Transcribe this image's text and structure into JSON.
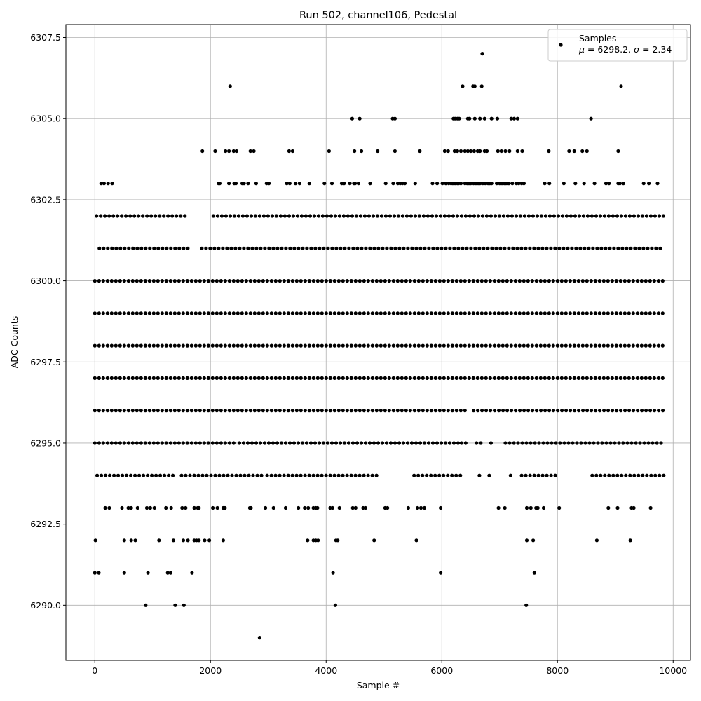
{
  "chart_data": {
    "type": "scatter",
    "title": "Run 502, channel106, Pedestal",
    "xlabel": "Sample #",
    "ylabel": "ADC Counts",
    "xlim": [
      -500,
      10300
    ],
    "ylim": [
      6288.3,
      6307.9
    ],
    "xticks": [
      0,
      2000,
      4000,
      6000,
      8000,
      10000
    ],
    "xtick_labels": [
      "0",
      "2000",
      "4000",
      "6000",
      "8000",
      "10000"
    ],
    "yticks": [
      6290.0,
      6292.5,
      6295.0,
      6297.5,
      6300.0,
      6302.5,
      6305.0,
      6307.5
    ],
    "ytick_labels": [
      "6290.0",
      "6292.5",
      "6295.0",
      "6297.5",
      "6300.0",
      "6302.5",
      "6305.0",
      "6307.5"
    ],
    "grid": true,
    "legend_position": "top-right",
    "series": [
      {
        "name": "Samples",
        "marker_color": "#000000",
        "n_samples": 9840,
        "levels": [
          {
            "y": 6289,
            "x": [
              2850
            ]
          },
          {
            "y": 6290,
            "x": [
              880,
              1390,
              1540,
              4160,
              7460
            ]
          },
          {
            "y": 6291,
            "x": [
              0,
              70,
              510,
              920,
              1260,
              1310,
              1680,
              4120,
              5980,
              7600
            ]
          },
          {
            "y": 6292,
            "x": [
              10,
              510,
              630,
              700,
              1110,
              1360,
              1530,
              1610,
              1720,
              1760,
              1800,
              1900,
              1980,
              2220,
              3680,
              3780,
              3820,
              3860,
              4170,
              4200,
              4830,
              5560,
              7470,
              7580,
              8680,
              9260
            ]
          },
          {
            "y": 6293,
            "x": [
              180,
              250,
              470,
              580,
              630,
              740,
              900,
              960,
              1030,
              1230,
              1320,
              1510,
              1570,
              1720,
              1780,
              1800,
              2040,
              2120,
              2220,
              2250,
              2680,
              2700,
              2950,
              3090,
              3300,
              3520,
              3630,
              3690,
              3780,
              3820,
              3850,
              4070,
              4110,
              4230,
              4460,
              4510,
              4640,
              4680,
              5020,
              5060,
              5420,
              5580,
              5640,
              5700,
              5980,
              6980,
              7090,
              7470,
              7540,
              7630,
              7660,
              7760,
              8030,
              8880,
              9040,
              9280,
              9320,
              9610
            ]
          },
          {
            "y": 6294,
            "x_ranges": [
              [
                40,
                1360
              ],
              [
                1500,
                2900
              ],
              [
                2980,
                4900
              ],
              [
                5520,
                6350
              ],
              [
                6650,
                6700
              ],
              [
                6820,
                6850
              ],
              [
                7190,
                7220
              ],
              [
                7380,
                8000
              ],
              [
                8600,
                9840
              ]
            ]
          },
          {
            "y": 6295,
            "x_ranges": [
              [
                0,
                2400
              ],
              [
                2500,
                6300
              ],
              [
                6340,
                6420
              ],
              [
                6600,
                6700
              ],
              [
                6850,
                6900
              ],
              [
                7100,
                9840
              ]
            ]
          },
          {
            "y": 6296,
            "x_ranges": [
              [
                0,
                6450
              ],
              [
                6550,
                9840
              ]
            ]
          },
          {
            "y": 6297,
            "x_ranges": [
              [
                0,
                9840
              ]
            ]
          },
          {
            "y": 6298,
            "x_ranges": [
              [
                0,
                9840
              ]
            ]
          },
          {
            "y": 6299,
            "x_ranges": [
              [
                0,
                9840
              ]
            ]
          },
          {
            "y": 6300,
            "x_ranges": [
              [
                0,
                9840
              ]
            ]
          },
          {
            "y": 6301,
            "x_ranges": [
              [
                80,
                1650
              ],
              [
                1850,
                9840
              ]
            ]
          },
          {
            "y": 6302,
            "x_ranges": [
              [
                30,
                1600
              ],
              [
                2050,
                9840
              ]
            ]
          },
          {
            "y": 6303,
            "x": [
              110,
              160,
              230,
              300,
              2140,
              2160,
              2320,
              2410,
              2440,
              2550,
              2580,
              2650,
              2790,
              2970,
              3010,
              3320,
              3370,
              3470,
              3540,
              3710,
              3970,
              4100,
              4270,
              4310,
              4410,
              4480,
              4500,
              4560,
              4760,
              5030,
              5160,
              5240,
              5280,
              5320,
              5360,
              5540,
              5840,
              5920,
              6010,
              6070,
              6120,
              6160,
              6190,
              6230,
              6270,
              6290,
              6330,
              6400,
              6440,
              6470,
              6500,
              6550,
              6590,
              6630,
              6660,
              6700,
              6730,
              6760,
              6800,
              6830,
              6860,
              6950,
              7000,
              7040,
              7080,
              7110,
              7140,
              7160,
              7220,
              7290,
              7330,
              7380,
              7420,
              7780,
              7860,
              8110,
              8310,
              8460,
              8640,
              8840,
              8890,
              9050,
              9080,
              9140,
              9490,
              9580,
              9730
            ]
          },
          {
            "y": 6304,
            "x": [
              1860,
              2080,
              2260,
              2320,
              2400,
              2450,
              2690,
              2750,
              3360,
              3420,
              4050,
              4490,
              4610,
              4890,
              5190,
              5620,
              6050,
              6110,
              6220,
              6270,
              6330,
              6400,
              6450,
              6500,
              6560,
              6620,
              6660,
              6740,
              6780,
              6970,
              7030,
              7100,
              7170,
              7310,
              7390,
              7850,
              8200,
              8290,
              8430,
              8510,
              9050
            ]
          },
          {
            "y": 6305,
            "x": [
              4450,
              4580,
              5150,
              5190,
              6200,
              6230,
              6270,
              6300,
              6450,
              6480,
              6570,
              6660,
              6740,
              6860,
              6960,
              7200,
              7250,
              7310,
              8580
            ]
          },
          {
            "y": 6306,
            "x": [
              2340,
              6360,
              6540,
              6570,
              6690,
              9100
            ]
          },
          {
            "y": 6307,
            "x": [
              6700
            ]
          }
        ]
      }
    ],
    "legend": {
      "label": "Samples",
      "stats_prefix": "μ = 6298.2, σ = 2.34",
      "mu": "6298.2",
      "sigma": "2.34"
    }
  }
}
